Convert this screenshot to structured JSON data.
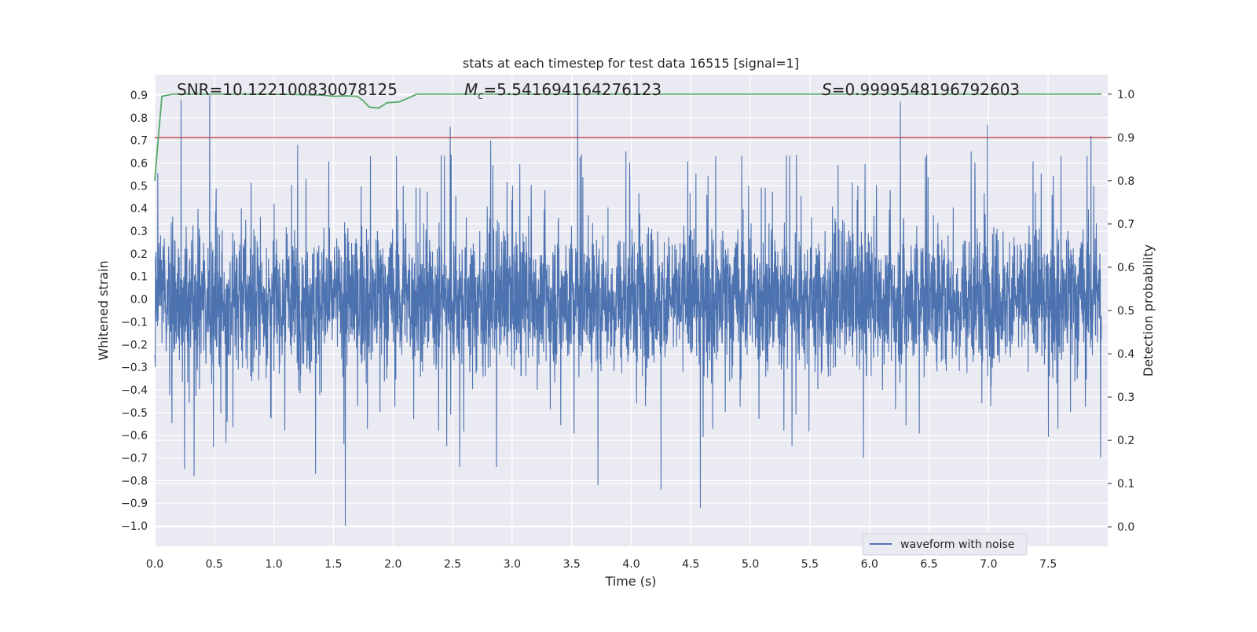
{
  "chart_data": {
    "type": "line",
    "title": "stats at each timestep for test data 16515 [signal=1]",
    "xlabel": "Time (s)",
    "ylabel_left": "Whitened strain",
    "ylabel_right": "Detection probability",
    "xlim": [
      0.0,
      8.0
    ],
    "ylim_left": [
      -1.09,
      0.99
    ],
    "ylim_right": [
      -0.045,
      1.045
    ],
    "x_ticks": [
      "0.0",
      "0.5",
      "1.0",
      "1.5",
      "2.0",
      "2.5",
      "3.0",
      "3.5",
      "4.0",
      "4.5",
      "5.0",
      "5.5",
      "6.0",
      "6.5",
      "7.0",
      "7.5"
    ],
    "y_left_ticks": [
      "0.9",
      "0.8",
      "0.7",
      "0.6",
      "0.5",
      "0.4",
      "0.3",
      "0.2",
      "0.1",
      "0.0",
      "−0.1",
      "−0.2",
      "−0.3",
      "−0.4",
      "−0.5",
      "−0.6",
      "−0.7",
      "−0.8",
      "−0.9",
      "−1.0"
    ],
    "y_right_ticks": [
      "1.0",
      "0.9",
      "0.8",
      "0.7",
      "0.6",
      "0.5",
      "0.4",
      "0.3",
      "0.2",
      "0.1",
      "0.0"
    ],
    "grid": true,
    "legend_position": "lower-right",
    "annotations": {
      "snr": "SNR=10.122100830078125",
      "mc": "=5.541694164276123",
      "mc_symbol": "M",
      "mc_sub": "c",
      "s": "=0.9999548196792603",
      "s_symbol": "S"
    },
    "threshold": {
      "axis": "right",
      "value": 0.9,
      "color": "#c44e52"
    },
    "series": [
      {
        "name": "waveform with noise",
        "axis": "left",
        "color": "#4c72b0",
        "samples_per_second": 512,
        "spikes": [
          [
            0.22,
            0.88
          ],
          [
            0.46,
            0.9
          ],
          [
            1.6,
            -1.0
          ],
          [
            2.48,
            0.76
          ],
          [
            3.55,
            0.9
          ],
          [
            4.25,
            -0.84
          ],
          [
            4.58,
            -0.92
          ],
          [
            6.26,
            0.87
          ],
          [
            6.99,
            0.77
          ],
          [
            7.86,
            0.72
          ],
          [
            0.25,
            -0.75
          ],
          [
            0.33,
            -0.78
          ],
          [
            1.35,
            -0.77
          ],
          [
            3.72,
            -0.82
          ],
          [
            2.56,
            -0.74
          ],
          [
            2.87,
            -0.74
          ],
          [
            5.95,
            -0.7
          ],
          [
            7.94,
            -0.7
          ],
          [
            1.2,
            0.68
          ],
          [
            2.82,
            0.7
          ]
        ]
      },
      {
        "axis": "right",
        "color": "#55a868",
        "x": [
          0.0,
          0.03,
          0.06,
          0.1,
          0.15,
          0.2,
          0.5,
          1.0,
          1.4,
          1.5,
          1.6,
          1.7,
          1.75,
          1.8,
          1.88,
          1.95,
          2.05,
          2.12,
          2.2,
          3.0,
          4.0,
          5.0,
          6.0,
          7.0,
          7.95
        ],
        "values": [
          0.8,
          0.9,
          0.995,
          0.997,
          1.0,
          1.0,
          1.0,
          1.0,
          0.998,
          0.995,
          0.996,
          0.995,
          0.985,
          0.97,
          0.968,
          0.98,
          0.982,
          0.99,
          1.0,
          1.0,
          1.0,
          1.0,
          1.0,
          1.0,
          1.0
        ]
      }
    ]
  }
}
